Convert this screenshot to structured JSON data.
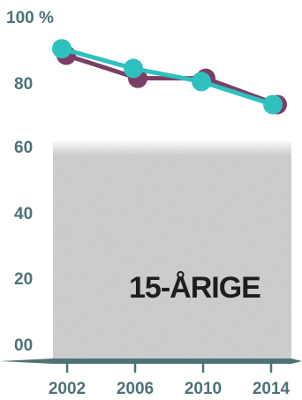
{
  "chart_data": {
    "type": "line",
    "x": [
      2002,
      2006,
      2010,
      2014
    ],
    "x_tick_labels": [
      "2002",
      "2006",
      "2010",
      "2014"
    ],
    "y_tick_labels": [
      "100 %",
      "80",
      "60",
      "40",
      "20",
      "00"
    ],
    "ylim": [
      0,
      100
    ],
    "series": [
      {
        "values": [
          88,
          81,
          81,
          73
        ],
        "color": "#7b3f66"
      },
      {
        "values": [
          90,
          84,
          80,
          73
        ],
        "color": "#2ec1bf"
      }
    ],
    "annotation": "15-ÅRIGE",
    "axis_color": "#4e7376",
    "shade_color": "#cfcfcf",
    "grid": false,
    "legend": "none"
  }
}
